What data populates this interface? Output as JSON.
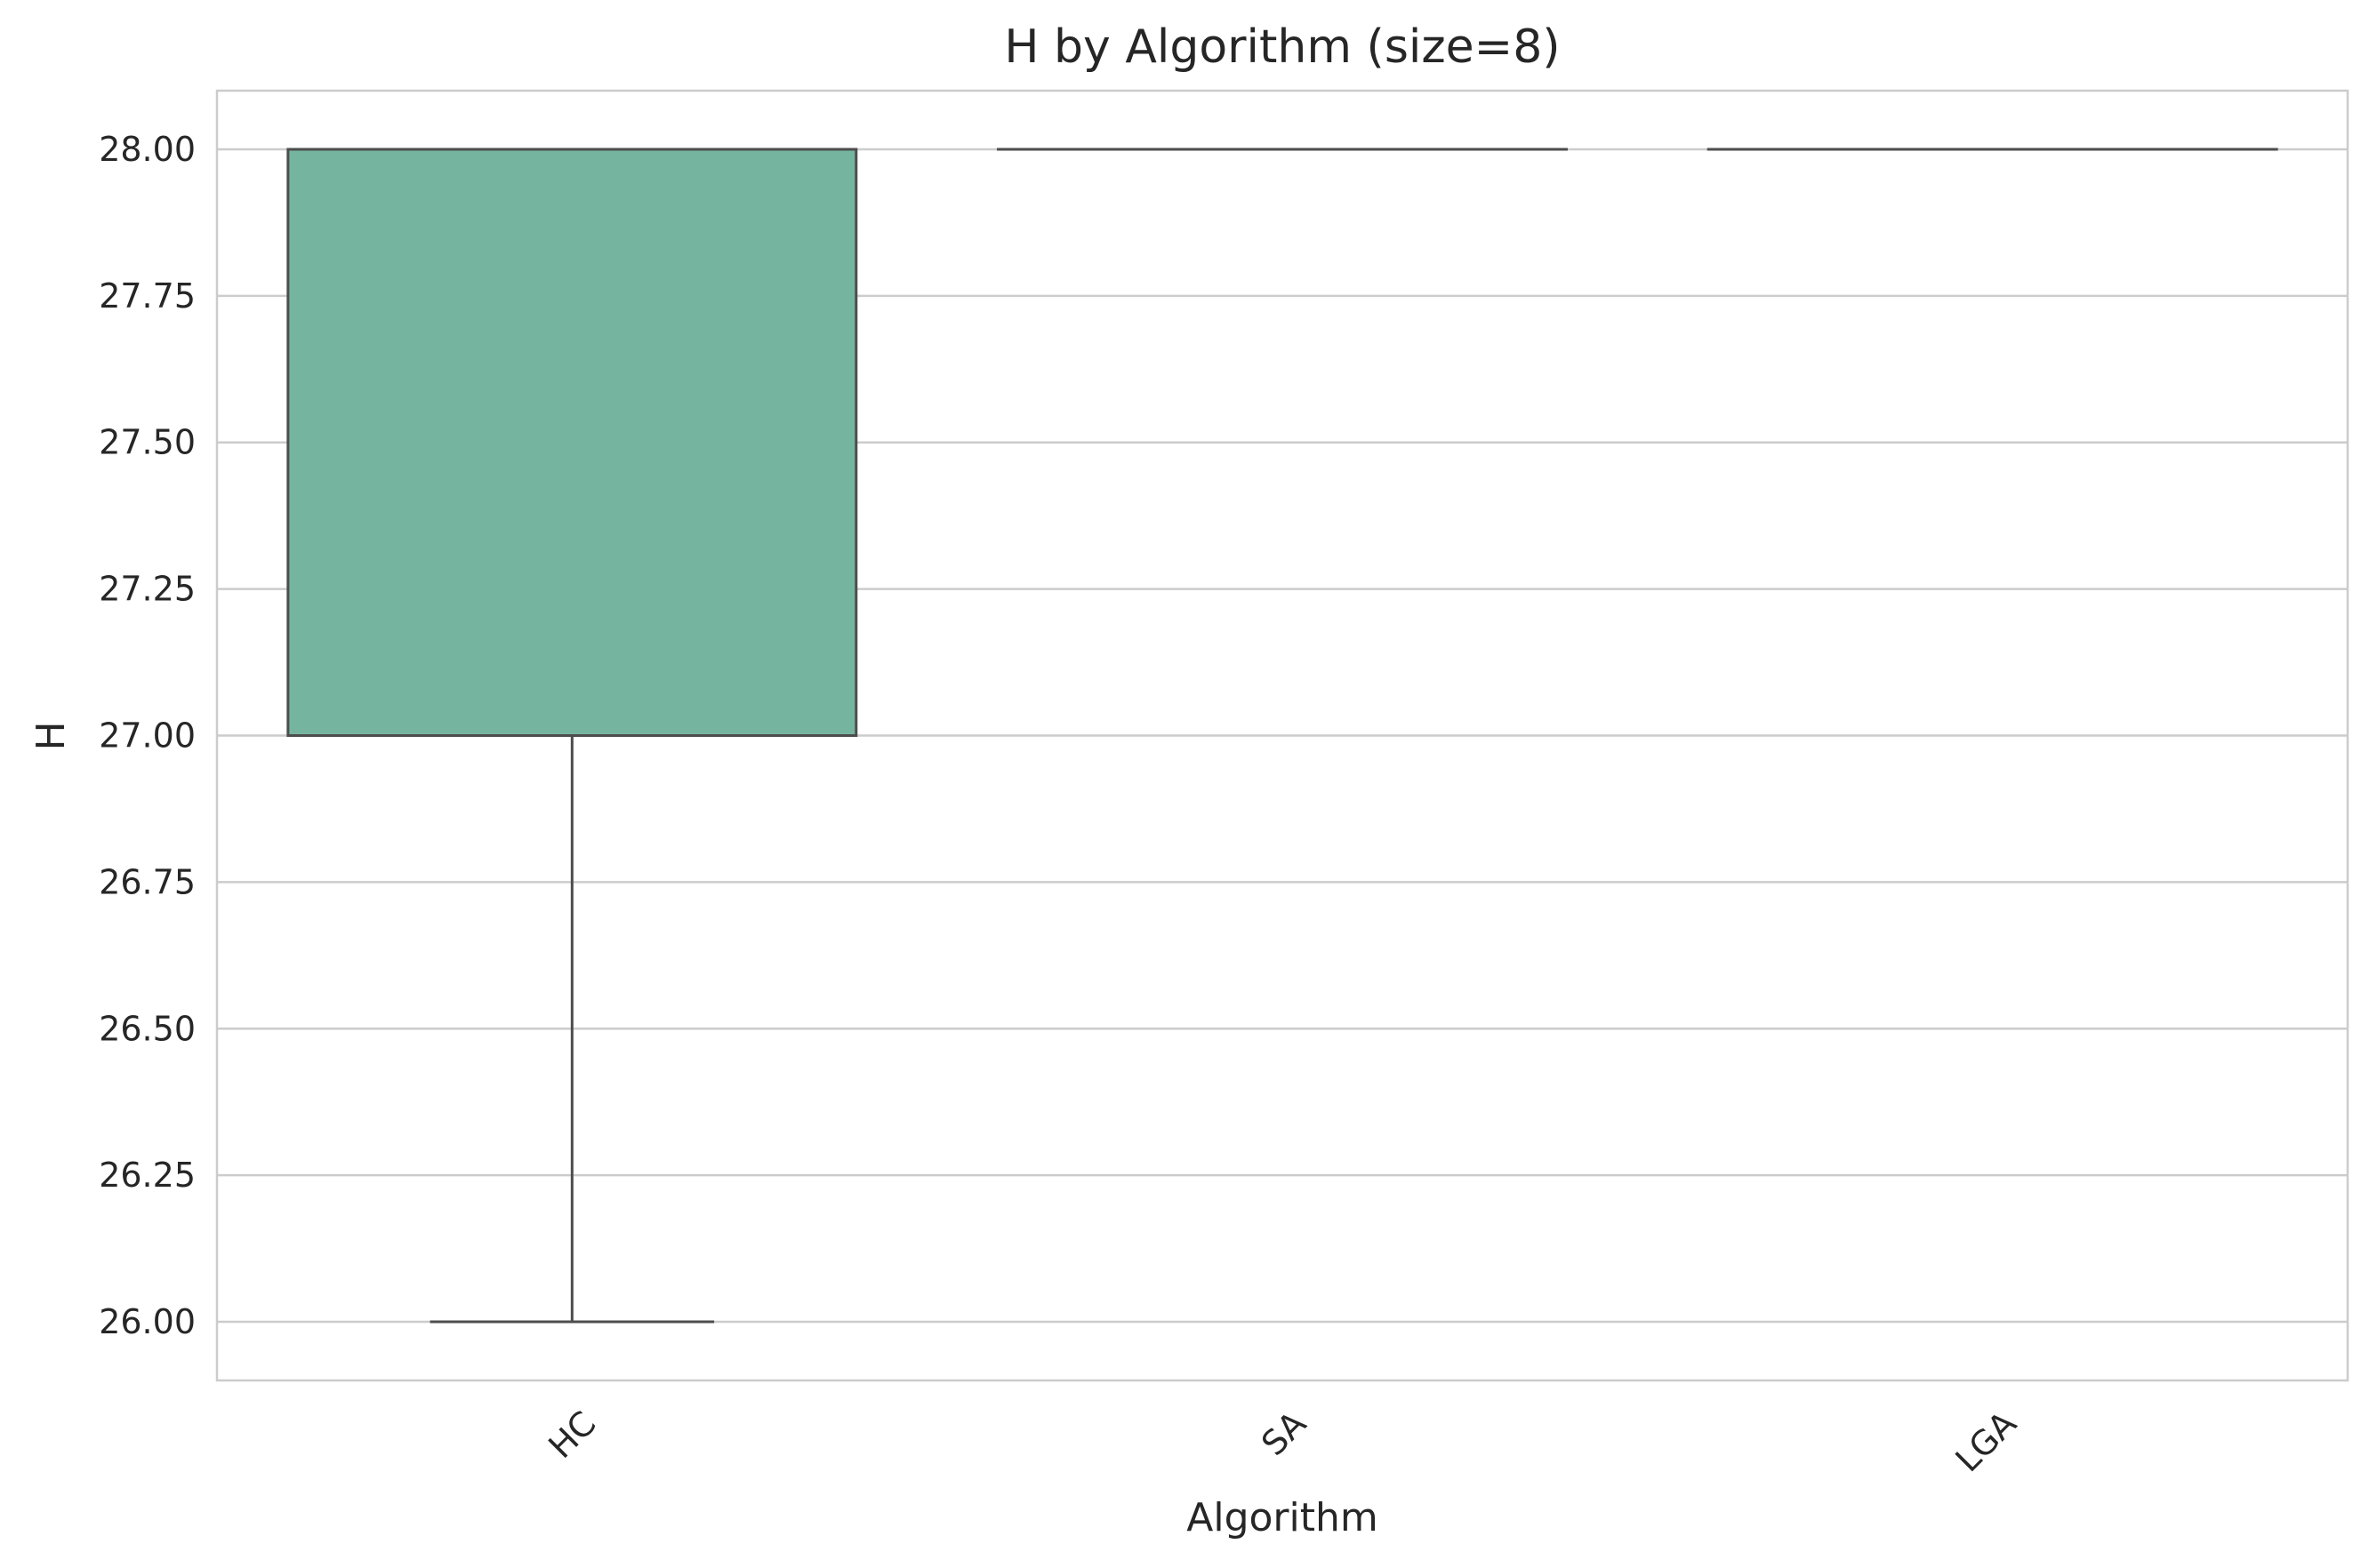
{
  "chart_data": {
    "type": "box",
    "title": "H by Algorithm (size=8)",
    "xlabel": "Algorithm",
    "ylabel": "H",
    "ylim": [
      25.9,
      28.1
    ],
    "yticks": [
      "26.00",
      "26.25",
      "26.50",
      "26.75",
      "27.00",
      "27.25",
      "27.50",
      "27.75",
      "28.00"
    ],
    "ytick_values": [
      26.0,
      26.25,
      26.5,
      26.75,
      27.0,
      27.25,
      27.5,
      27.75,
      28.0
    ],
    "grid": true,
    "categories": [
      "HC",
      "SA",
      "LGA"
    ],
    "boxes": [
      {
        "category": "HC",
        "min": 26.0,
        "q1": 27.0,
        "median": 28.0,
        "q3": 28.0,
        "max": 28.0
      },
      {
        "category": "SA",
        "min": 28.0,
        "q1": 28.0,
        "median": 28.0,
        "q3": 28.0,
        "max": 28.0
      },
      {
        "category": "LGA",
        "min": 28.0,
        "q1": 28.0,
        "median": 28.0,
        "q3": 28.0,
        "max": 28.0
      }
    ],
    "colors": {
      "HC": "#75b5a0",
      "SA": "#fc8d62",
      "LGA": "#8da0cb"
    },
    "box_edge_color": "#4d4d4d",
    "grid_color": "#cccccc",
    "frame_color": "#cccccc"
  }
}
